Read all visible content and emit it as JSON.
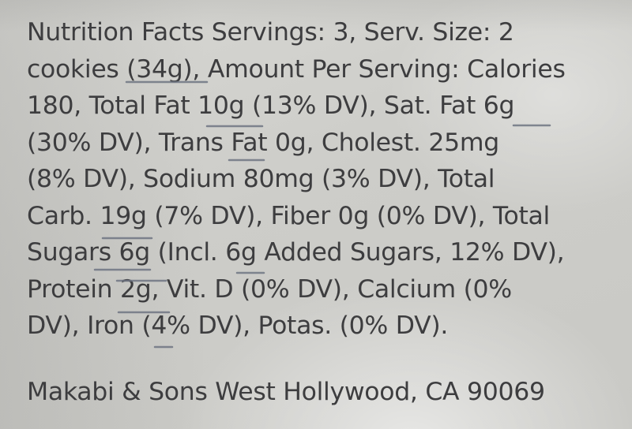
{
  "nutrition_label": {
    "lines": [
      "Nutrition Facts Servings: 3, Serv. Size: 2",
      "cookies (34g), Amount Per Serving: Calories",
      "180, Total Fat 10g (13% DV), Sat. Fat 6g",
      "(30% DV), Trans Fat 0g, Cholest. 25mg",
      "(8% DV), Sodium 80mg (3% DV), Total",
      "Carb. 19g (7% DV), Fiber 0g (0% DV), Total",
      "Sugars 6g (Incl. 6g Added Sugars, 12% DV),",
      "Protein 2g, Vit. D (0% DV), Calcium (0%",
      "DV), Iron (4% DV), Potas. (0% DV)."
    ]
  },
  "manufacturer": {
    "text": "Makabi & Sons West Hollywood,  CA 90069"
  },
  "colors": {
    "text": "#3d3d3f",
    "background": "#cfcfcc",
    "pencil_marks": "#6f7583"
  }
}
